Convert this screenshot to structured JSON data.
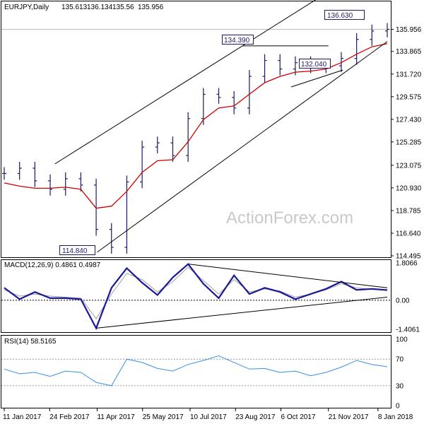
{
  "watermark": "ActionForex.com",
  "chart_data": [
    {
      "type": "line",
      "subtype": "daily-ohlc-bars",
      "title": "EURJPY,Daily",
      "ohlc_header": {
        "open": 135.613,
        "high": 136.134,
        "low": 135.56,
        "close": 135.956
      },
      "ylim": [
        114.495,
        138.2
      ],
      "y_ticks": [
        "135.956",
        "133.865",
        "131.720",
        "129.575",
        "127.430",
        "125.285",
        "123.075",
        "120.930",
        "118.785",
        "116.640",
        "114.495"
      ],
      "last_price": 135.956,
      "x": [
        "2017-01-11",
        "2017-01-25",
        "2017-02-08",
        "2017-02-24",
        "2017-03-10",
        "2017-03-28",
        "2017-04-11",
        "2017-04-25",
        "2017-05-10",
        "2017-05-25",
        "2017-06-09",
        "2017-06-23",
        "2017-07-10",
        "2017-07-24",
        "2017-08-08",
        "2017-08-23",
        "2017-09-07",
        "2017-09-21",
        "2017-10-06",
        "2017-10-20",
        "2017-11-06",
        "2017-11-21",
        "2017-12-05",
        "2017-12-20",
        "2018-01-08",
        "2018-01-17"
      ],
      "x_tick_labels": [
        "11 Jan 2017",
        "24 Feb 2017",
        "11 Apr 2017",
        "25 May 2017",
        "10 Jul 2017",
        "23 Aug 2017",
        "6 Oct 2017",
        "21 Nov 2017",
        "8 Jan 2018"
      ],
      "series": [
        {
          "name": "",
          "role": "price",
          "color": "#1a1a66",
          "values": [
            122.3,
            122.8,
            121.6,
            120.8,
            121.8,
            121.2,
            117.0,
            115.3,
            121.5,
            124.8,
            125.2,
            124.0,
            127.5,
            129.8,
            129.5,
            128.5,
            131.5,
            133.0,
            132.2,
            132.8,
            132.4,
            132.5,
            133.2,
            135.0,
            135.8,
            135.956
          ]
        },
        {
          "name": "",
          "role": "moving-average",
          "color": "#cc0000",
          "values": [
            121.4,
            121.1,
            120.9,
            120.9,
            121.0,
            120.8,
            119.0,
            119.2,
            120.6,
            122.4,
            123.5,
            123.6,
            125.3,
            127.4,
            128.5,
            128.7,
            129.8,
            130.9,
            131.5,
            131.9,
            132.0,
            132.2,
            132.8,
            133.6,
            134.3,
            134.6
          ]
        }
      ],
      "annotations": [
        "114.840",
        "134.390",
        "132.040",
        "136.630"
      ]
    },
    {
      "type": "line",
      "title": "MACD(12,26,9) 0.4861 0.4987",
      "ylim": [
        -1.4061,
        1.8066
      ],
      "y_ticks": [
        "1.8066",
        "0.00",
        "-1.4061"
      ],
      "series": [
        {
          "name": "",
          "role": "macd",
          "color": "#1a1a99",
          "values": [
            0.6,
            0.05,
            0.4,
            0.1,
            0.1,
            0.05,
            -1.35,
            0.6,
            1.55,
            0.85,
            0.25,
            1.1,
            1.75,
            0.8,
            0.1,
            1.2,
            0.3,
            0.6,
            0.4,
            0.05,
            0.3,
            0.55,
            0.9,
            0.5,
            0.55,
            0.49
          ]
        },
        {
          "name": "",
          "role": "signal",
          "color": "#a0a0a0",
          "values": [
            0.5,
            0.2,
            0.3,
            0.2,
            0.15,
            0.1,
            -0.9,
            0.3,
            1.3,
            1.0,
            0.4,
            0.9,
            1.6,
            0.95,
            0.3,
            1.0,
            0.4,
            0.55,
            0.45,
            0.15,
            0.3,
            0.5,
            0.8,
            0.6,
            0.52,
            0.5
          ]
        }
      ]
    },
    {
      "type": "line",
      "title": "RSI(14) 58.5165",
      "ylim": [
        0,
        100
      ],
      "y_ticks": [
        "100",
        "70",
        "30",
        "0"
      ],
      "series": [
        {
          "name": "",
          "role": "rsi",
          "color": "#3a8ee6",
          "values": [
            55,
            48,
            50,
            44,
            52,
            50,
            35,
            30,
            70,
            65,
            56,
            52,
            62,
            68,
            75,
            65,
            55,
            56,
            50,
            52,
            45,
            50,
            58,
            68,
            62,
            58.5
          ]
        }
      ]
    }
  ]
}
